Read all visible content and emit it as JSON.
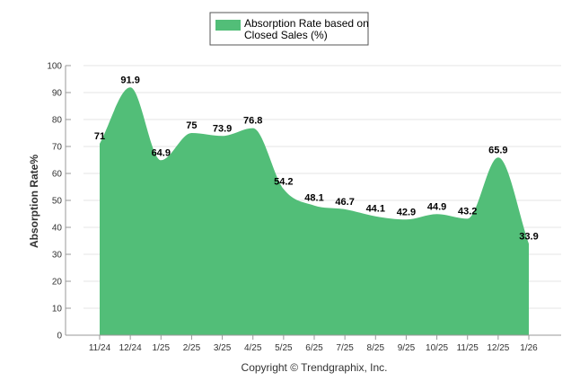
{
  "chart_data": {
    "type": "area",
    "categories": [
      "11/24",
      "12/24",
      "1/25",
      "2/25",
      "3/25",
      "4/25",
      "5/25",
      "6/25",
      "7/25",
      "8/25",
      "9/25",
      "10/25",
      "11/25",
      "12/25",
      "1/26"
    ],
    "series": [
      {
        "name": "Absorption Rate based on Closed Sales (%)",
        "values": [
          71,
          91.9,
          64.9,
          75,
          73.9,
          76.8,
          54.2,
          48.1,
          46.7,
          44.1,
          42.9,
          44.9,
          43.2,
          65.9,
          33.9
        ]
      }
    ],
    "data_labels": [
      "71",
      "91.9",
      "64.9",
      "75",
      "73.9",
      "76.8",
      "54.2",
      "48.1",
      "46.7",
      "44.1",
      "42.9",
      "44.9",
      "43.2",
      "65.9",
      "33.9"
    ],
    "legend": {
      "line1": "Absorption Rate based on",
      "line2": "Closed Sales (%)",
      "placement": "top-center"
    },
    "ylabel": "Absorption Rate%",
    "ylim": [
      0,
      100
    ],
    "yticks": [
      0,
      10,
      20,
      30,
      40,
      50,
      60,
      70,
      80,
      90,
      100
    ],
    "grid": true,
    "colors": {
      "fill": "#52be78",
      "grid": "#e6e6e6",
      "axis": "#999999"
    },
    "credit": "Copyright © Trendgraphix, Inc."
  }
}
